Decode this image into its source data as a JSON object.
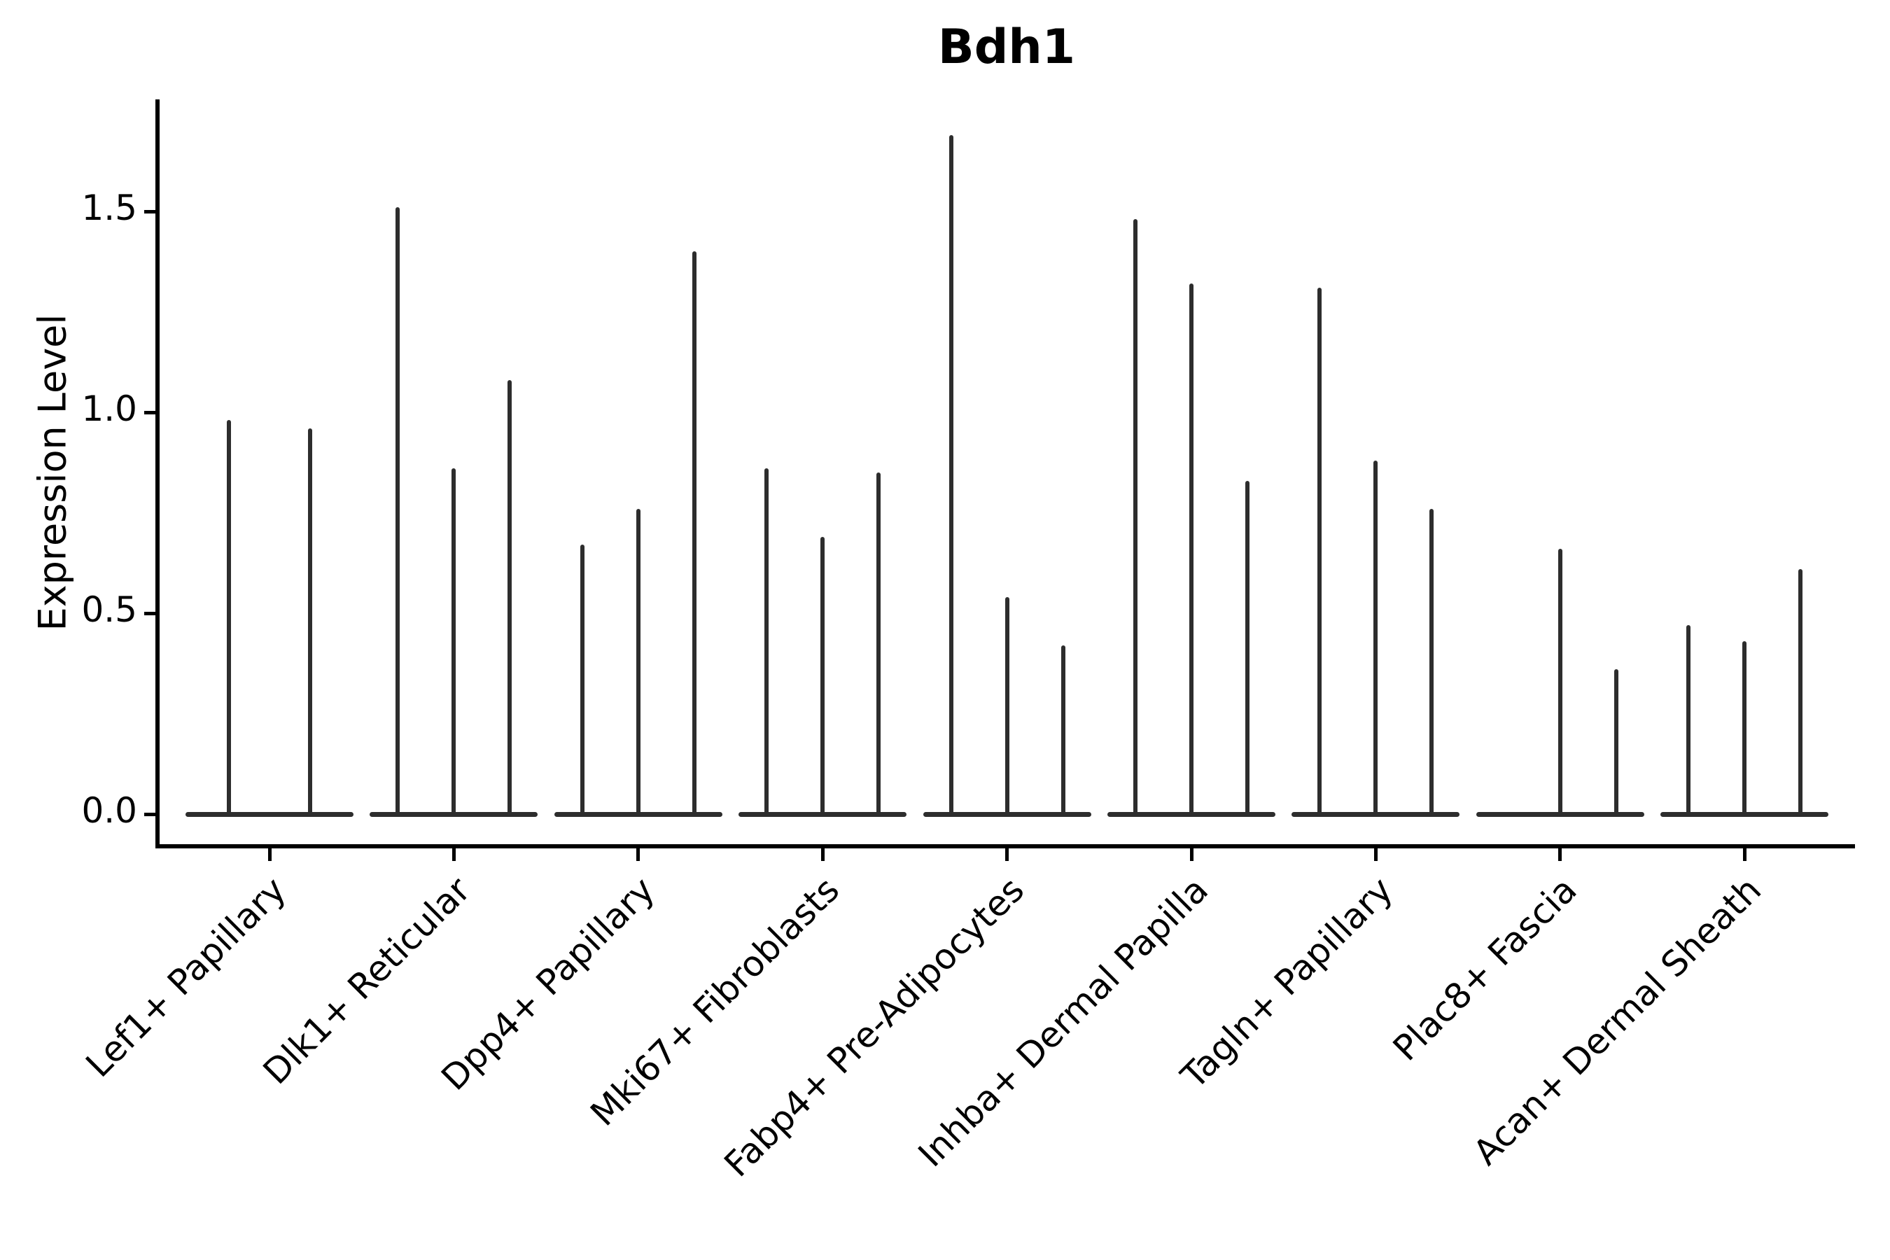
{
  "chart_data": {
    "type": "violin",
    "title": "Bdh1",
    "ylabel": "Expression Level",
    "xlabel": "",
    "yticks": [
      "0.0",
      "0.5",
      "1.0",
      "1.5"
    ],
    "ytick_values": [
      0.0,
      0.5,
      1.0,
      1.5
    ],
    "ylim": [
      -0.08,
      1.78
    ],
    "grid": false,
    "legend": "none",
    "violin_color": "#2d2d2d",
    "categories": [
      "Lef1+ Papillary",
      "Dlk1+ Reticular",
      "Dpp4+ Papillary",
      "Mki67+ Fibroblasts",
      "Fabp4+ Pre-Adipocytes",
      "Inhba+ Dermal Papilla",
      "Tagln+ Papillary",
      "Plac8+ Fascia",
      "Acan+ Dermal Sheath"
    ],
    "groups": [
      {
        "category": "Lef1+ Papillary",
        "offsets": [
          -58,
          58
        ],
        "peaks": [
          0.98,
          0.96
        ]
      },
      {
        "category": "Dlk1+ Reticular",
        "offsets": [
          -80,
          0,
          80
        ],
        "peaks": [
          1.51,
          0.86,
          1.08
        ]
      },
      {
        "category": "Dpp4+ Papillary",
        "offsets": [
          -80,
          0,
          80
        ],
        "peaks": [
          0.67,
          0.76,
          1.4
        ]
      },
      {
        "category": "Mki67+ Fibroblasts",
        "offsets": [
          -80,
          0,
          80
        ],
        "peaks": [
          0.86,
          0.69,
          0.85
        ]
      },
      {
        "category": "Fabp4+ Pre-Adipocytes",
        "offsets": [
          -80,
          0,
          80
        ],
        "peaks": [
          1.69,
          0.54,
          0.42
        ]
      },
      {
        "category": "Inhba+ Dermal Papilla",
        "offsets": [
          -80,
          0,
          80
        ],
        "peaks": [
          1.48,
          1.32,
          0.83
        ]
      },
      {
        "category": "Tagln+ Papillary",
        "offsets": [
          -80,
          0,
          80
        ],
        "peaks": [
          1.31,
          0.88,
          0.76
        ]
      },
      {
        "category": "Plac8+ Fascia",
        "offsets": [
          -80,
          0,
          80
        ],
        "peaks": [
          0.0,
          0.66,
          0.36
        ]
      },
      {
        "category": "Acan+ Dermal Sheath",
        "offsets": [
          -80,
          0,
          80
        ],
        "peaks": [
          0.47,
          0.43,
          0.61
        ]
      }
    ]
  }
}
